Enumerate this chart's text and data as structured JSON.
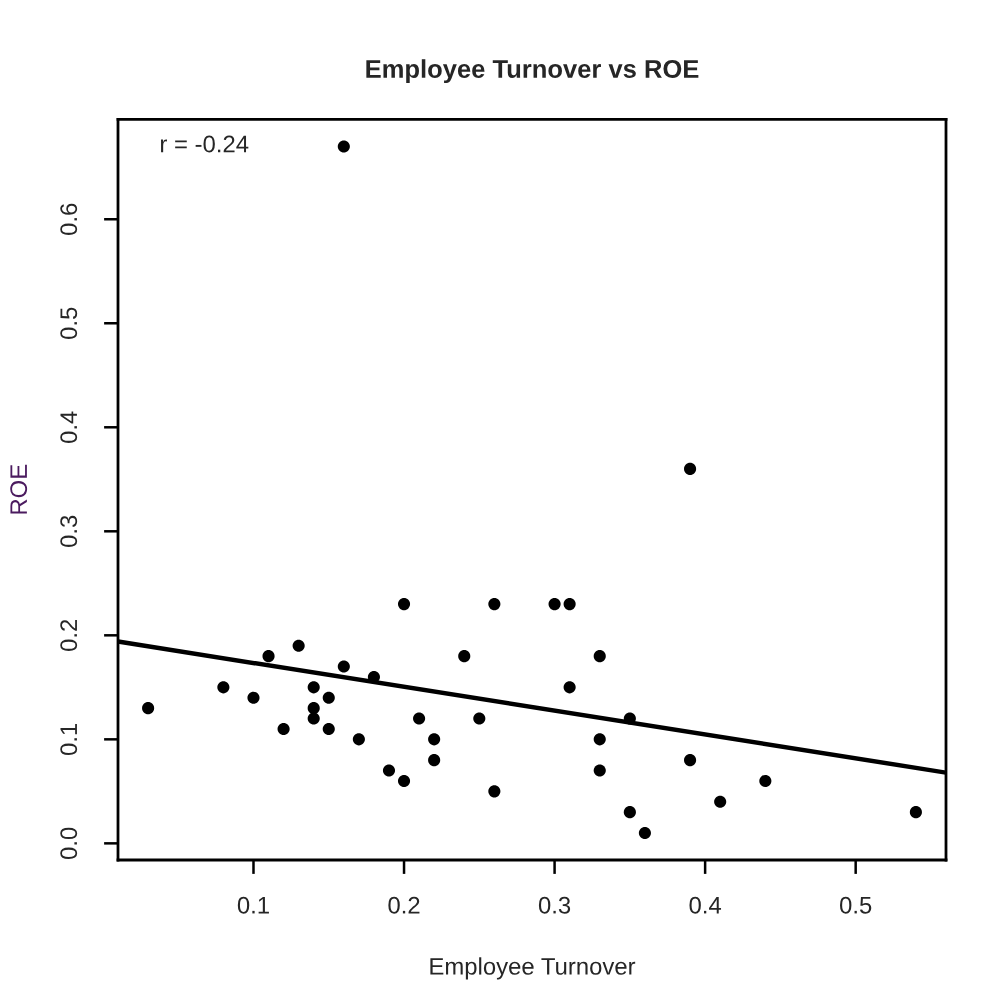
{
  "chart_data": {
    "type": "scatter",
    "title": "Employee Turnover vs ROE",
    "xlabel": "Employee Turnover",
    "ylabel": "ROE",
    "annotations": [
      "r = -0.24"
    ],
    "series": [
      {
        "color": "#000000",
        "marker": "circle",
        "x": [
          0.03,
          0.08,
          0.1,
          0.11,
          0.12,
          0.13,
          0.14,
          0.14,
          0.14,
          0.15,
          0.15,
          0.16,
          0.16,
          0.17,
          0.18,
          0.19,
          0.2,
          0.2,
          0.21,
          0.22,
          0.22,
          0.24,
          0.25,
          0.26,
          0.26,
          0.3,
          0.31,
          0.33,
          0.31,
          0.35,
          0.33,
          0.33,
          0.35,
          0.36,
          0.39,
          0.41,
          0.44,
          0.54,
          0.39
        ],
        "values": [
          0.13,
          0.15,
          0.14,
          0.18,
          0.11,
          0.19,
          0.15,
          0.13,
          0.12,
          0.14,
          0.11,
          0.17,
          0.67,
          0.1,
          0.16,
          0.07,
          0.23,
          0.06,
          0.12,
          0.1,
          0.08,
          0.18,
          0.12,
          0.23,
          0.05,
          0.23,
          0.23,
          0.18,
          0.15,
          0.12,
          0.1,
          0.07,
          0.03,
          0.01,
          0.08,
          0.04,
          0.06,
          0.03,
          0.36
        ]
      },
      {
        "type": "line",
        "color": "#000000",
        "line_style": "solid",
        "x": [
          0.01,
          0.56
        ],
        "values": [
          0.194,
          0.068
        ]
      }
    ],
    "xlim": [
      0.01,
      0.56
    ],
    "ylim": [
      -0.016,
      0.696
    ],
    "xticks": [
      0.1,
      0.2,
      0.3,
      0.4,
      0.5
    ],
    "yticks": [
      {
        "value": 0,
        "label": "0.0"
      },
      0.1,
      0.2,
      0.3,
      0.4,
      0.5,
      0.6
    ],
    "grid": false
  }
}
